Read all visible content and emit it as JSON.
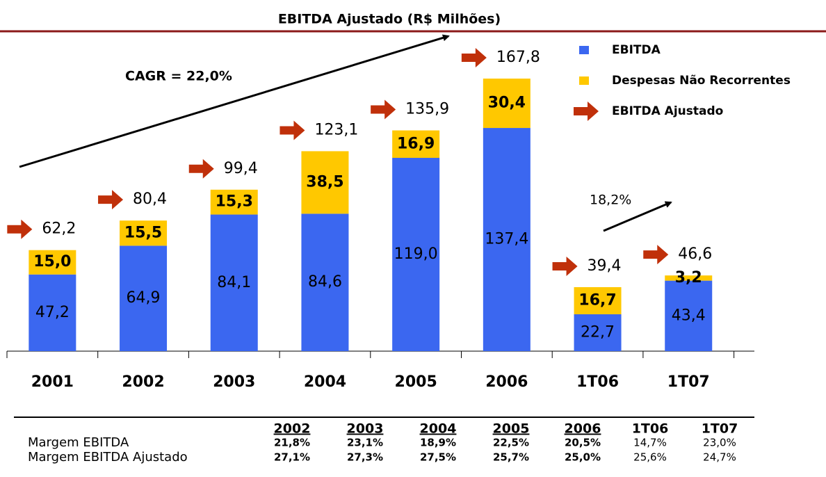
{
  "chart_data": {
    "type": "stacked_bar",
    "title": "EBITDA Ajustado (R$ Milhões)",
    "categories": [
      "2001",
      "2002",
      "2003",
      "2004",
      "2005",
      "2006",
      "1T06",
      "1T07"
    ],
    "series": [
      {
        "name": "EBITDA",
        "color": "#3b67f0",
        "values": [
          47.2,
          64.9,
          84.1,
          84.6,
          119.0,
          137.4,
          22.7,
          43.4
        ],
        "value_labels": [
          "47,2",
          "64,9",
          "84,1",
          "84,6",
          "119,0",
          "137,4",
          "22,7",
          "43,4"
        ]
      },
      {
        "name": "Despesas Não Recorrentes",
        "color": "#ffc800",
        "values": [
          15.0,
          15.5,
          15.3,
          38.5,
          16.9,
          30.4,
          16.7,
          3.2
        ],
        "value_labels": [
          "15,0",
          "15,5",
          "15,3",
          "38,5",
          "16,9",
          "30,4",
          "16,7",
          "3,2"
        ]
      },
      {
        "name": "EBITDA Ajustado",
        "color": "#c0300a",
        "values": [
          62.2,
          80.4,
          99.4,
          123.1,
          135.9,
          167.8,
          39.4,
          46.6
        ],
        "value_labels": [
          "62,2",
          "80,4",
          "99,4",
          "123,1",
          "135,9",
          "167,8",
          "39,4",
          "46,6"
        ]
      }
    ],
    "annotations": [
      "CAGR = 22,0%",
      "18,2%"
    ]
  },
  "table": {
    "columns": [
      "2002",
      "2003",
      "2004",
      "2005",
      "2006",
      "1T06",
      "1T07"
    ],
    "rows": [
      {
        "label": "Margem EBITDA",
        "values": [
          "21,8%",
          "23,1%",
          "18,9%",
          "22,5%",
          "20,5%",
          "14,7%",
          "23,0%"
        ]
      },
      {
        "label": "Margem EBITDA Ajustado",
        "values": [
          "27,1%",
          "27,3%",
          "27,5%",
          "25,7%",
          "25,0%",
          "25,6%",
          "24,7%"
        ]
      }
    ]
  }
}
